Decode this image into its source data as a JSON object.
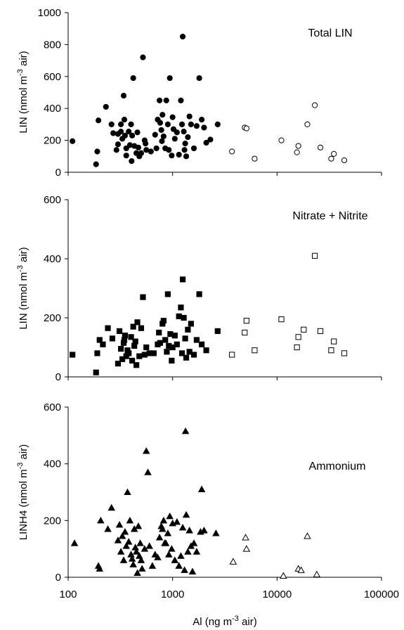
{
  "chart_data": [
    {
      "type": "scatter",
      "title": "Total LIN",
      "ylabel_parts": [
        "LIN (nmol m",
        "-3",
        " air)"
      ],
      "xscale": "log",
      "xlim": [
        100,
        100000
      ],
      "ylim": [
        0,
        1000
      ],
      "yticks": [
        "0",
        "200",
        "400",
        "600",
        "800",
        "1000"
      ],
      "xticks": [],
      "series": [
        {
          "marker": "filled-circle",
          "points": [
            [
              110,
              195
            ],
            [
              185,
              50
            ],
            [
              190,
              130
            ],
            [
              195,
              325
            ],
            [
              230,
              410
            ],
            [
              260,
              300
            ],
            [
              270,
              245
            ],
            [
              290,
              140
            ],
            [
              300,
              240
            ],
            [
              300,
              175
            ],
            [
              320,
              255
            ],
            [
              320,
              300
            ],
            [
              330,
              210
            ],
            [
              340,
              480
            ],
            [
              345,
              330
            ],
            [
              350,
              230
            ],
            [
              360,
              150
            ],
            [
              360,
              105
            ],
            [
              380,
              255
            ],
            [
              390,
              170
            ],
            [
              400,
              300
            ],
            [
              405,
              70
            ],
            [
              410,
              230
            ],
            [
              420,
              590
            ],
            [
              430,
              165
            ],
            [
              450,
              120
            ],
            [
              460,
              250
            ],
            [
              470,
              155
            ],
            [
              480,
              100
            ],
            [
              500,
              120
            ],
            [
              520,
              720
            ],
            [
              540,
              200
            ],
            [
              550,
              180
            ],
            [
              560,
              140
            ],
            [
              620,
              130
            ],
            [
              680,
              235
            ],
            [
              700,
              150
            ],
            [
              720,
              330
            ],
            [
              750,
              450
            ],
            [
              760,
              310
            ],
            [
              780,
              265
            ],
            [
              790,
              195
            ],
            [
              800,
              360
            ],
            [
              820,
              225
            ],
            [
              850,
              150
            ],
            [
              870,
              450
            ],
            [
              900,
              300
            ],
            [
              920,
              140
            ],
            [
              940,
              590
            ],
            [
              980,
              105
            ],
            [
              1000,
              345
            ],
            [
              1020,
              270
            ],
            [
              1050,
              210
            ],
            [
              1100,
              250
            ],
            [
              1150,
              110
            ],
            [
              1200,
              450
            ],
            [
              1230,
              300
            ],
            [
              1250,
              850
            ],
            [
              1280,
              255
            ],
            [
              1300,
              140
            ],
            [
              1320,
              180
            ],
            [
              1350,
              100
            ],
            [
              1400,
              220
            ],
            [
              1450,
              350
            ],
            [
              1500,
              300
            ],
            [
              1600,
              150
            ],
            [
              1700,
              290
            ],
            [
              1800,
              590
            ],
            [
              1900,
              330
            ],
            [
              2000,
              280
            ],
            [
              2100,
              185
            ],
            [
              2300,
              205
            ],
            [
              2700,
              300
            ]
          ]
        },
        {
          "marker": "open-circle",
          "points": [
            [
              3700,
              130
            ],
            [
              4900,
              280
            ],
            [
              5100,
              275
            ],
            [
              6100,
              85
            ],
            [
              11000,
              200
            ],
            [
              15500,
              125
            ],
            [
              16000,
              165
            ],
            [
              19500,
              300
            ],
            [
              23000,
              420
            ],
            [
              26000,
              155
            ],
            [
              33000,
              85
            ],
            [
              35000,
              115
            ],
            [
              44000,
              75
            ]
          ]
        }
      ]
    },
    {
      "type": "scatter",
      "title": "Nitrate + Nitrite",
      "ylabel_parts": [
        "LIN (nmol m",
        "-3",
        " air)"
      ],
      "xscale": "log",
      "xlim": [
        100,
        100000
      ],
      "ylim": [
        0,
        600
      ],
      "yticks": [
        "0",
        "200",
        "400",
        "600"
      ],
      "xticks": [],
      "series": [
        {
          "marker": "filled-square",
          "points": [
            [
              110,
              75
            ],
            [
              185,
              15
            ],
            [
              190,
              80
            ],
            [
              200,
              125
            ],
            [
              215,
              110
            ],
            [
              240,
              165
            ],
            [
              265,
              130
            ],
            [
              300,
              45
            ],
            [
              310,
              155
            ],
            [
              320,
              95
            ],
            [
              330,
              60
            ],
            [
              340,
              115
            ],
            [
              345,
              125
            ],
            [
              350,
              140
            ],
            [
              360,
              70
            ],
            [
              370,
              90
            ],
            [
              380,
              80
            ],
            [
              400,
              135
            ],
            [
              410,
              55
            ],
            [
              420,
              170
            ],
            [
              430,
              105
            ],
            [
              440,
              120
            ],
            [
              450,
              40
            ],
            [
              460,
              185
            ],
            [
              480,
              70
            ],
            [
              500,
              165
            ],
            [
              520,
              270
            ],
            [
              540,
              75
            ],
            [
              560,
              100
            ],
            [
              600,
              80
            ],
            [
              660,
              80
            ],
            [
              720,
              110
            ],
            [
              740,
              150
            ],
            [
              760,
              115
            ],
            [
              800,
              180
            ],
            [
              820,
              190
            ],
            [
              850,
              125
            ],
            [
              880,
              85
            ],
            [
              900,
              280
            ],
            [
              920,
              105
            ],
            [
              950,
              145
            ],
            [
              980,
              55
            ],
            [
              1000,
              100
            ],
            [
              1050,
              140
            ],
            [
              1100,
              110
            ],
            [
              1150,
              205
            ],
            [
              1200,
              235
            ],
            [
              1230,
              80
            ],
            [
              1250,
              330
            ],
            [
              1280,
              200
            ],
            [
              1320,
              130
            ],
            [
              1350,
              65
            ],
            [
              1400,
              160
            ],
            [
              1450,
              85
            ],
            [
              1500,
              180
            ],
            [
              1600,
              75
            ],
            [
              1700,
              125
            ],
            [
              1800,
              280
            ],
            [
              1900,
              110
            ],
            [
              2100,
              90
            ],
            [
              2700,
              155
            ]
          ]
        },
        {
          "marker": "open-square",
          "points": [
            [
              3700,
              75
            ],
            [
              4900,
              150
            ],
            [
              5100,
              190
            ],
            [
              6100,
              90
            ],
            [
              11000,
              195
            ],
            [
              15500,
              100
            ],
            [
              16000,
              135
            ],
            [
              18000,
              160
            ],
            [
              23000,
              410
            ],
            [
              26000,
              155
            ],
            [
              33000,
              90
            ],
            [
              35000,
              120
            ],
            [
              44000,
              80
            ]
          ]
        }
      ]
    },
    {
      "type": "scatter",
      "title": "Ammonium",
      "ylabel_parts": [
        "LINH4 (nmol m",
        "-3",
        " air)"
      ],
      "xscale": "log",
      "xlim": [
        100,
        100000
      ],
      "ylim": [
        0,
        600
      ],
      "yticks": [
        "0",
        "200",
        "400",
        "600"
      ],
      "xticks": [
        "100",
        "1000",
        "10000",
        "100000"
      ],
      "xlabel_parts": [
        "Al (ng m",
        "-3",
        " air)"
      ],
      "series": [
        {
          "marker": "filled-triangle",
          "points": [
            [
              115,
              120
            ],
            [
              195,
              40
            ],
            [
              200,
              30
            ],
            [
              205,
              200
            ],
            [
              240,
              170
            ],
            [
              260,
              245
            ],
            [
              300,
              130
            ],
            [
              310,
              185
            ],
            [
              320,
              90
            ],
            [
              330,
              145
            ],
            [
              340,
              60
            ],
            [
              350,
              160
            ],
            [
              360,
              110
            ],
            [
              370,
              300
            ],
            [
              380,
              125
            ],
            [
              390,
              200
            ],
            [
              400,
              80
            ],
            [
              410,
              65
            ],
            [
              420,
              45
            ],
            [
              430,
              170
            ],
            [
              440,
              105
            ],
            [
              450,
              90
            ],
            [
              460,
              15
            ],
            [
              470,
              180
            ],
            [
              480,
              75
            ],
            [
              490,
              120
            ],
            [
              500,
              60
            ],
            [
              510,
              30
            ],
            [
              540,
              100
            ],
            [
              560,
              445
            ],
            [
              580,
              370
            ],
            [
              600,
              110
            ],
            [
              640,
              40
            ],
            [
              680,
              80
            ],
            [
              720,
              70
            ],
            [
              750,
              140
            ],
            [
              780,
              180
            ],
            [
              800,
              170
            ],
            [
              820,
              200
            ],
            [
              840,
              120
            ],
            [
              860,
              120
            ],
            [
              900,
              155
            ],
            [
              920,
              80
            ],
            [
              940,
              215
            ],
            [
              980,
              100
            ],
            [
              1000,
              190
            ],
            [
              1050,
              60
            ],
            [
              1100,
              195
            ],
            [
              1150,
              40
            ],
            [
              1200,
              75
            ],
            [
              1250,
              175
            ],
            [
              1300,
              25
            ],
            [
              1330,
              515
            ],
            [
              1350,
              220
            ],
            [
              1400,
              90
            ],
            [
              1450,
              165
            ],
            [
              1500,
              110
            ],
            [
              1550,
              20
            ],
            [
              1600,
              120
            ],
            [
              1700,
              90
            ],
            [
              1850,
              160
            ],
            [
              1900,
              310
            ],
            [
              2000,
              165
            ],
            [
              2600,
              155
            ]
          ]
        },
        {
          "marker": "open-triangle",
          "points": [
            [
              3800,
              55
            ],
            [
              5000,
              140
            ],
            [
              5100,
              100
            ],
            [
              11500,
              5
            ],
            [
              16000,
              30
            ],
            [
              17000,
              25
            ],
            [
              19500,
              145
            ],
            [
              24000,
              10
            ]
          ]
        }
      ]
    }
  ]
}
